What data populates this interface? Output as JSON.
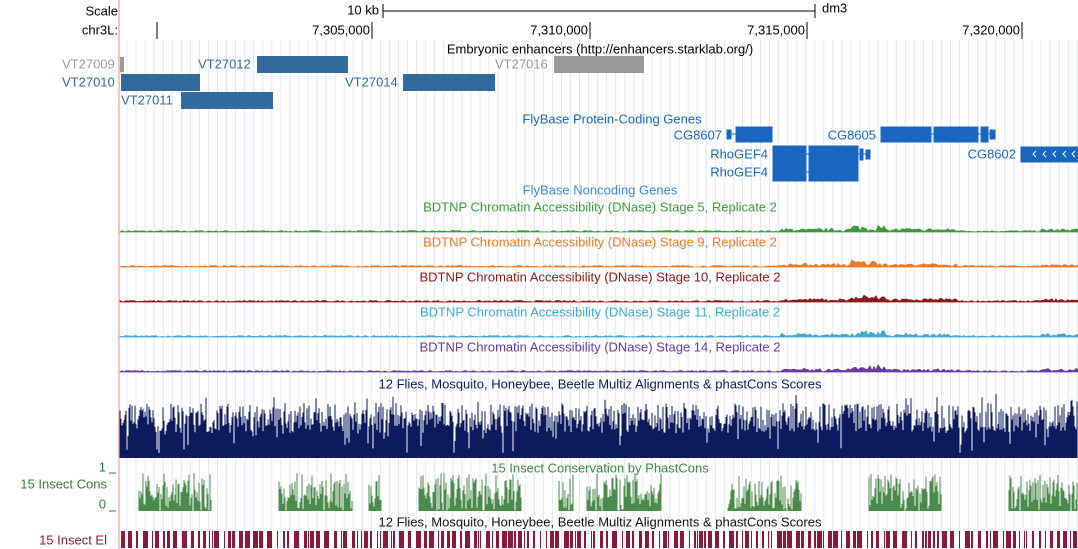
{
  "header": {
    "scale_label": "Scale",
    "scale_size": "10 kb",
    "assembly": "dm3",
    "chrom": "chr3L:",
    "positions": [
      "7,305,000",
      "7,310,000",
      "7,315,000",
      "7,320,000"
    ]
  },
  "tracks": {
    "enhancers": {
      "title": "Embryonic enhancers (http://enhancers.starklab.org/)",
      "items": [
        "VT27009",
        "VT27010",
        "VT27011",
        "VT27012",
        "VT27014",
        "VT27016"
      ]
    },
    "protein_coding": {
      "title": "FlyBase Protein-Coding Genes",
      "items": [
        "CG8607",
        "CG8605",
        "RhoGEF4",
        "RhoGEF4",
        "CG8602"
      ]
    },
    "noncoding": {
      "title": "FlyBase Noncoding Genes"
    },
    "dnase": [
      "BDTNP Chromatin Accessibility (DNase) Stage 5, Replicate 2",
      "BDTNP Chromatin Accessibility (DNase) Stage 9, Replicate 2",
      "BDTNP Chromatin Accessibility (DNase) Stage 10, Replicate 2",
      "BDTNP Chromatin Accessibility (DNase) Stage 11, Replicate 2",
      "BDTNP Chromatin Accessibility (DNase) Stage 14, Replicate 2"
    ],
    "multiz": {
      "title": "12 Flies, Mosquito, Honeybee, Beetle Multiz Alignments & phastCons Scores"
    },
    "phastcons": {
      "title": "15 Insect Conservation by PhastCons",
      "side_label": "15 Insect Cons",
      "axis_max": "1",
      "axis_min": "0"
    },
    "elements": {
      "title": "12 Flies, Mosquito, Honeybee, Beetle Multiz Alignments & phastCons Scores",
      "side_label": "15 Insect El"
    }
  }
}
